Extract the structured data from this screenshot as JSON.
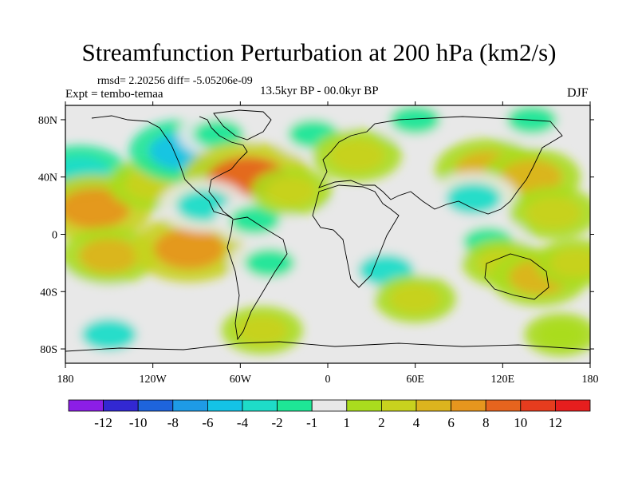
{
  "title": "Streamfunction Perturbation at 200 hPa (km2/s)",
  "stats": "rmsd= 2.20256 diff= -5.05206e-09",
  "experiment": "Expt = tembo-temaa",
  "period": "13.5kyr BP - 00.0kyr BP",
  "season": "DJF",
  "map": {
    "lon_range": [
      -180,
      180
    ],
    "lat_range": [
      -90,
      90
    ],
    "x_ticks": [
      {
        "lon": -180,
        "label": "180"
      },
      {
        "lon": -120,
        "label": "120W"
      },
      {
        "lon": -60,
        "label": "60W"
      },
      {
        "lon": 0,
        "label": "0"
      },
      {
        "lon": 60,
        "label": "60E"
      },
      {
        "lon": 120,
        "label": "120E"
      },
      {
        "lon": 180,
        "label": "180"
      }
    ],
    "y_ticks": [
      {
        "lat": 80,
        "label": "80N"
      },
      {
        "lat": 40,
        "label": "40N"
      },
      {
        "lat": 0,
        "label": "0"
      },
      {
        "lat": -40,
        "label": "40S"
      },
      {
        "lat": -80,
        "label": "80S"
      }
    ],
    "anomalies": [
      {
        "lon": -170,
        "lat": 42,
        "value": -4
      },
      {
        "lon": -160,
        "lat": 18,
        "value": 6
      },
      {
        "lon": -165,
        "lat": -35,
        "value": -1
      },
      {
        "lon": -150,
        "lat": -15,
        "value": 4
      },
      {
        "lon": -120,
        "lat": 35,
        "value": 3
      },
      {
        "lon": -95,
        "lat": -10,
        "value": 6
      },
      {
        "lon": -150,
        "lat": -70,
        "value": -3
      },
      {
        "lon": -100,
        "lat": 58,
        "value": -5
      },
      {
        "lon": -75,
        "lat": 70,
        "value": -2
      },
      {
        "lon": -55,
        "lat": 38,
        "value": 8
      },
      {
        "lon": -85,
        "lat": 20,
        "value": -3
      },
      {
        "lon": -50,
        "lat": 10,
        "value": -2
      },
      {
        "lon": -25,
        "lat": 30,
        "value": 2
      },
      {
        "lon": -10,
        "lat": 70,
        "value": -2
      },
      {
        "lon": -40,
        "lat": -20,
        "value": -2
      },
      {
        "lon": -45,
        "lat": -67,
        "value": 2
      },
      {
        "lon": 20,
        "lat": 55,
        "value": 3
      },
      {
        "lon": 60,
        "lat": 80,
        "value": -2
      },
      {
        "lon": 20,
        "lat": 10,
        "value": -1
      },
      {
        "lon": 40,
        "lat": -25,
        "value": -3
      },
      {
        "lon": 60,
        "lat": -45,
        "value": 2
      },
      {
        "lon": 110,
        "lat": 45,
        "value": 5
      },
      {
        "lon": 140,
        "lat": 40,
        "value": 4
      },
      {
        "lon": 140,
        "lat": 80,
        "value": -2
      },
      {
        "lon": 100,
        "lat": 25,
        "value": -3
      },
      {
        "lon": 155,
        "lat": 15,
        "value": 3
      },
      {
        "lon": 110,
        "lat": -5,
        "value": -2
      },
      {
        "lon": 120,
        "lat": -20,
        "value": 2
      },
      {
        "lon": 145,
        "lat": -30,
        "value": 4
      },
      {
        "lon": 170,
        "lat": -20,
        "value": 2
      },
      {
        "lon": 160,
        "lat": -70,
        "value": 1
      }
    ]
  },
  "colorbar": {
    "levels": [
      "-12",
      "-10",
      "-8",
      "-6",
      "-4",
      "-2",
      "-1",
      "1",
      "2",
      "4",
      "6",
      "8",
      "10",
      "12"
    ],
    "colors": [
      "#8c1ee6",
      "#3228d2",
      "#1e64dc",
      "#1e9be6",
      "#14c3e6",
      "#1edcc8",
      "#1ee696",
      "#e8e8e8",
      "#aadc1e",
      "#c8d21e",
      "#dcb41e",
      "#e6961e",
      "#e6641e",
      "#e63c1e",
      "#e61e1e"
    ]
  }
}
